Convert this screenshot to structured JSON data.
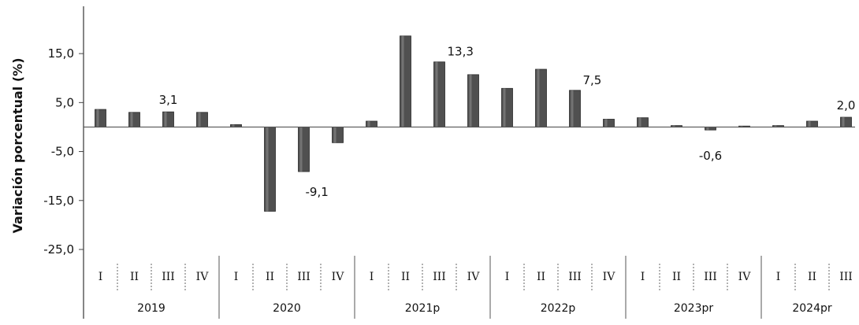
{
  "chart_data": {
    "type": "bar",
    "ylabel": "Variación porcentual (%)",
    "ylim": [
      -25,
      20
    ],
    "yticks": [
      15,
      5,
      -5,
      -15,
      -25
    ],
    "ytick_labels": [
      "15,0",
      "5,0",
      "-5,0",
      "-15,0",
      "-25,0"
    ],
    "groups": [
      {
        "year": "2019",
        "quarters": [
          "I",
          "II",
          "III",
          "IV"
        ]
      },
      {
        "year": "2020",
        "quarters": [
          "I",
          "II",
          "III",
          "IV"
        ]
      },
      {
        "year": "2021p",
        "quarters": [
          "I",
          "II",
          "III",
          "IV"
        ]
      },
      {
        "year": "2022p",
        "quarters": [
          "I",
          "II",
          "III",
          "IV"
        ]
      },
      {
        "year": "2023pr",
        "quarters": [
          "I",
          "II",
          "III",
          "IV"
        ]
      },
      {
        "year": "2024pr",
        "quarters": [
          "I",
          "II",
          "III"
        ]
      }
    ],
    "values": [
      3.6,
      3.0,
      3.1,
      3.0,
      0.5,
      -17.2,
      -9.1,
      -3.2,
      1.2,
      18.6,
      13.3,
      10.7,
      7.9,
      11.8,
      7.5,
      1.6,
      1.9,
      0.3,
      -0.6,
      0.2,
      0.3,
      1.2,
      2.0
    ],
    "data_labels": [
      {
        "index": 2,
        "text": "3,1"
      },
      {
        "index": 6,
        "text": "-9,1"
      },
      {
        "index": 10,
        "text": "13,3"
      },
      {
        "index": 14,
        "text": "7,5"
      },
      {
        "index": 18,
        "text": "-0,6"
      },
      {
        "index": 22,
        "text": "2,0"
      }
    ],
    "bar_color": "#505050",
    "grid": false
  }
}
